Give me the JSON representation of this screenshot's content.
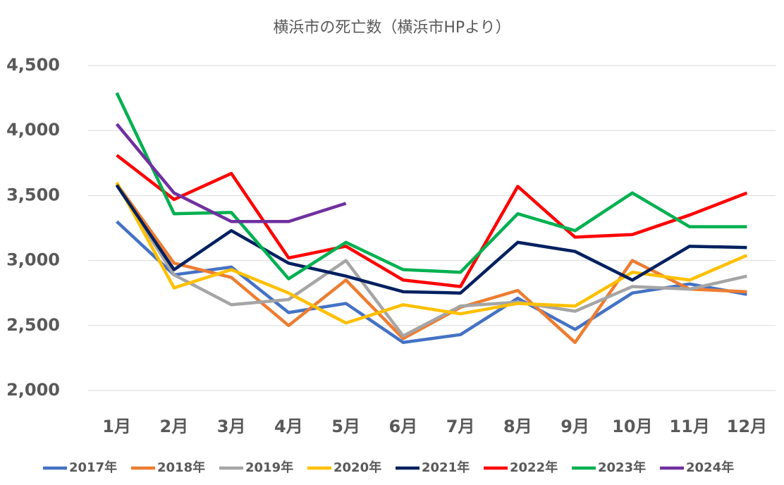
{
  "chart_data": {
    "type": "line",
    "title": "横浜市の死亡数（横浜市HPより）",
    "categories": [
      "1月",
      "2月",
      "3月",
      "4月",
      "5月",
      "6月",
      "7月",
      "8月",
      "9月",
      "10月",
      "11月",
      "12月"
    ],
    "ylim": [
      2000,
      4500
    ],
    "yticks": [
      {
        "value": 2000,
        "label": "2,000"
      },
      {
        "value": 2500,
        "label": "2,500"
      },
      {
        "value": 3000,
        "label": "3,000"
      },
      {
        "value": 3500,
        "label": "3,500"
      },
      {
        "value": 4000,
        "label": "4,000"
      },
      {
        "value": 4500,
        "label": "4,500"
      }
    ],
    "grid": true,
    "legend": "bottom",
    "series": [
      {
        "name": "2017年",
        "color": "#4472c4",
        "values": [
          3300,
          2890,
          2950,
          2600,
          2670,
          2370,
          2430,
          2710,
          2470,
          2750,
          2820,
          2740
        ]
      },
      {
        "name": "2018年",
        "color": "#ed7d31",
        "values": [
          3590,
          2980,
          2870,
          2500,
          2850,
          2400,
          2640,
          2770,
          2370,
          3000,
          2780,
          2760
        ]
      },
      {
        "name": "2019年",
        "color": "#a5a5a5",
        "values": [
          3580,
          2890,
          2660,
          2700,
          3000,
          2420,
          2650,
          2680,
          2610,
          2800,
          2780,
          2880
        ]
      },
      {
        "name": "2020年",
        "color": "#ffc000",
        "values": [
          3600,
          2790,
          2930,
          2750,
          2520,
          2660,
          2590,
          2670,
          2650,
          2910,
          2850,
          3040
        ]
      },
      {
        "name": "2021年",
        "color": "#002060",
        "values": [
          3580,
          2930,
          3230,
          2980,
          2880,
          2760,
          2750,
          3140,
          3070,
          2850,
          3110,
          3100
        ]
      },
      {
        "name": "2022年",
        "color": "#ff0000",
        "values": [
          3810,
          3470,
          3670,
          3020,
          3110,
          2850,
          2800,
          3570,
          3180,
          3200,
          3350,
          3520
        ]
      },
      {
        "name": "2023年",
        "color": "#00b050",
        "values": [
          4290,
          3360,
          3370,
          2860,
          3140,
          2930,
          2910,
          3360,
          3230,
          3520,
          3260,
          3260
        ]
      },
      {
        "name": "2024年",
        "color": "#7030a0",
        "values": [
          4050,
          3520,
          3300,
          3300,
          3440,
          null,
          null,
          null,
          null,
          null,
          null,
          null
        ]
      }
    ]
  }
}
